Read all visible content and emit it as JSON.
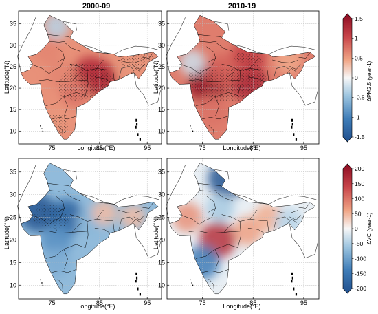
{
  "figure": {
    "panel_titles": [
      "2000-09",
      "2010-19"
    ]
  },
  "axes": {
    "xlabel": "Longitude(°E)",
    "ylabel": "Latitude(°N)",
    "x_ticks": [
      "75",
      "85",
      "95"
    ],
    "y_ticks": [
      "35",
      "30",
      "25",
      "20",
      "15",
      "10"
    ]
  },
  "colorbars": [
    {
      "label": "ΔPM2.5 (year-1)",
      "ticks": [
        "1.5",
        "1",
        "0.5",
        "0",
        "-0.5",
        "-1",
        "-1.5"
      ]
    },
    {
      "label": "ΔVC (year-1)",
      "ticks": [
        "200",
        "150",
        "100",
        "50",
        "0",
        "-50",
        "-100",
        "-150",
        "-200"
      ]
    }
  ],
  "colors": {
    "strong_negative": "#1f4e8c",
    "neutral": "#f7f7f7",
    "strong_positive": "#8b0a21"
  },
  "chart_data": [
    {
      "type": "heatmap",
      "variable": "ΔPM2.5",
      "period": "2000-09",
      "xlim": [
        68,
        98
      ],
      "ylim": [
        7,
        38
      ],
      "clim": [
        -1.5,
        1.5
      ],
      "hotspots": [
        {
          "lon": 84.5,
          "lat": 22.5,
          "value": 1.3
        },
        {
          "lon": 83,
          "lat": 23.5,
          "value": 1.1
        },
        {
          "lon": 80,
          "lat": 19,
          "value": 0.7
        },
        {
          "lon": 77,
          "lat": 23,
          "value": 0.6
        },
        {
          "lon": 74,
          "lat": 29,
          "value": 0.6
        },
        {
          "lon": 92,
          "lat": 26,
          "value": 0.5
        },
        {
          "lon": 76,
          "lat": 13,
          "value": 0.5
        },
        {
          "lon": 76,
          "lat": 34.5,
          "value": -0.3
        }
      ]
    },
    {
      "type": "heatmap",
      "variable": "ΔPM2.5",
      "period": "2010-19",
      "xlim": [
        68,
        98
      ],
      "ylim": [
        7,
        38
      ],
      "clim": [
        -1.5,
        1.5
      ],
      "hotspots": [
        {
          "lon": 76,
          "lat": 21,
          "value": 1.4
        },
        {
          "lon": 84,
          "lat": 21.5,
          "value": 1.2
        },
        {
          "lon": 84,
          "lat": 27,
          "value": 1.0
        },
        {
          "lon": 79,
          "lat": 24,
          "value": 0.8
        },
        {
          "lon": 77,
          "lat": 15,
          "value": 0.7
        },
        {
          "lon": 73,
          "lat": 26,
          "value": -0.2
        },
        {
          "lon": 92,
          "lat": 26.5,
          "value": 0.4
        }
      ]
    },
    {
      "type": "heatmap",
      "variable": "ΔVC",
      "period": "2000-09",
      "xlim": [
        68,
        98
      ],
      "ylim": [
        7,
        38
      ],
      "clim": [
        -200,
        200
      ],
      "hotspots": [
        {
          "lon": 72,
          "lat": 26,
          "value": -190
        },
        {
          "lon": 78,
          "lat": 25,
          "value": -170
        },
        {
          "lon": 76,
          "lat": 20,
          "value": -110
        },
        {
          "lon": 76,
          "lat": 15,
          "value": -80
        },
        {
          "lon": 83,
          "lat": 24,
          "value": -70
        },
        {
          "lon": 86,
          "lat": 26,
          "value": 40
        },
        {
          "lon": 92,
          "lat": 25,
          "value": 40
        }
      ]
    },
    {
      "type": "heatmap",
      "variable": "ΔVC",
      "period": "2010-19",
      "xlim": [
        68,
        98
      ],
      "ylim": [
        7,
        38
      ],
      "clim": [
        -200,
        200
      ],
      "hotspots": [
        {
          "lon": 80,
          "lat": 33.5,
          "value": -190
        },
        {
          "lon": 78,
          "lat": 20,
          "value": 150
        },
        {
          "lon": 75,
          "lat": 15,
          "value": -130
        },
        {
          "lon": 72,
          "lat": 25,
          "value": 70
        },
        {
          "lon": 84,
          "lat": 22,
          "value": 60
        },
        {
          "lon": 78.5,
          "lat": 27,
          "value": -50
        },
        {
          "lon": 88,
          "lat": 25,
          "value": 50
        },
        {
          "lon": 92,
          "lat": 24,
          "value": -40
        }
      ]
    }
  ]
}
